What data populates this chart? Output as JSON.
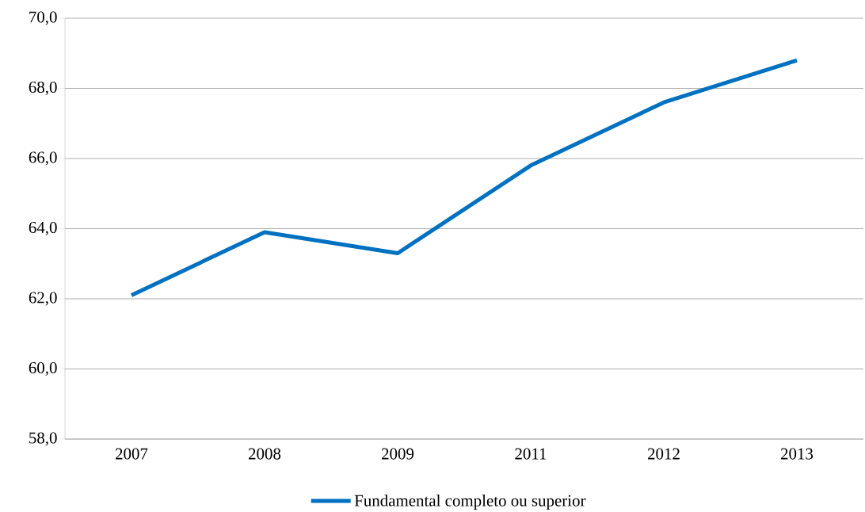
{
  "chart_data": {
    "type": "line",
    "categories": [
      "2007",
      "2008",
      "2009",
      "2011",
      "2012",
      "2013"
    ],
    "series": [
      {
        "name": "Fundamental completo ou superior",
        "color": "#0070c0",
        "values": [
          62.1,
          63.9,
          63.3,
          65.8,
          67.6,
          68.8
        ]
      }
    ],
    "ylim": [
      58,
      70
    ],
    "yticks": [
      {
        "value": 58,
        "label": "58,0"
      },
      {
        "value": 60,
        "label": "60,0"
      },
      {
        "value": 62,
        "label": "62,0"
      },
      {
        "value": 64,
        "label": "64,0"
      },
      {
        "value": 66,
        "label": "66,0"
      },
      {
        "value": 68,
        "label": "68,0"
      },
      {
        "value": 70,
        "label": "70,0"
      }
    ],
    "grid": "y",
    "legend": "bottom",
    "marker": "none",
    "line_style": "solid"
  }
}
